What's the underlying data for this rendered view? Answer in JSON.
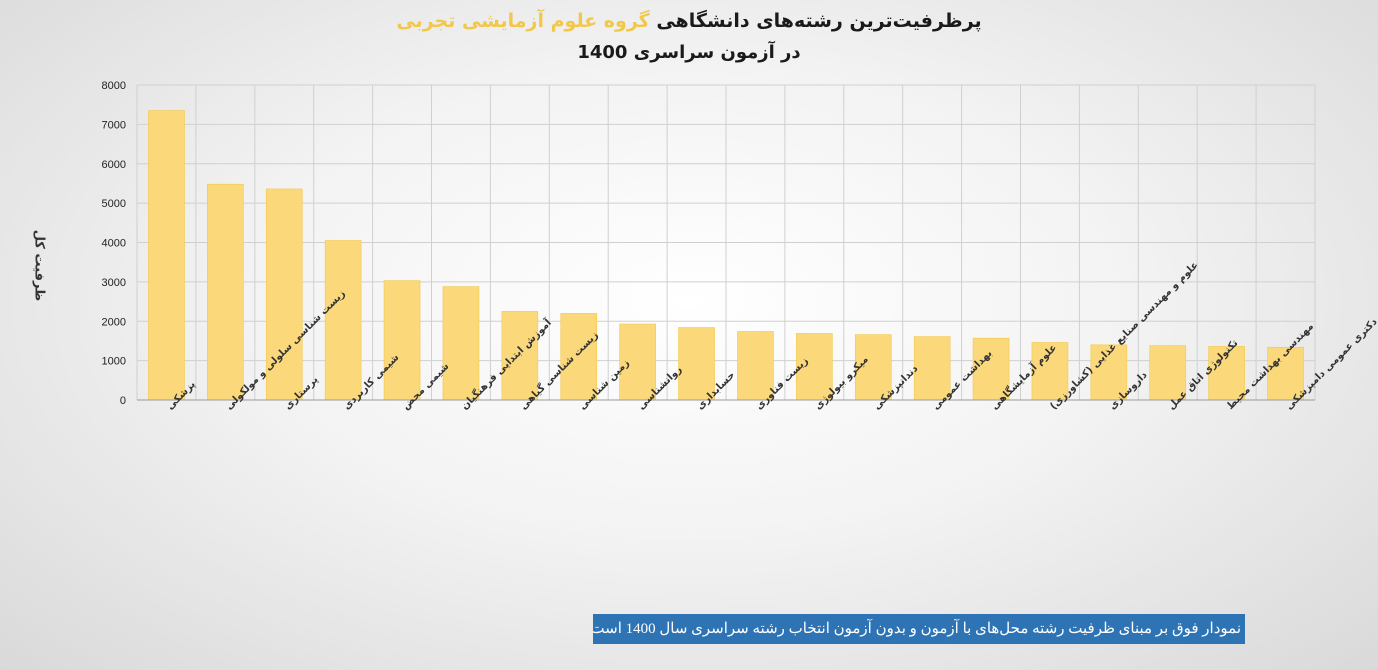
{
  "chart_data": {
    "type": "bar",
    "title_part1": "پرظرفیت‌ترین رشته‌های دانشگاهی ",
    "title_part2": "گروه علوم آزمایشی تجربی",
    "subtitle": "در آزمون سراسری 1400",
    "ylabel": "ظرفیت کل",
    "xlabel": "",
    "ylim": [
      0,
      8000
    ],
    "yticks": [
      0,
      1000,
      2000,
      3000,
      4000,
      5000,
      6000,
      7000,
      8000
    ],
    "grid": true,
    "bar_color": "#fbd97b",
    "bar_stroke": "#f2c84b",
    "categories": [
      "پزشکی",
      "زیست شناسی سلولی و مولکولی",
      "پرستاری",
      "شیمی کاربردی",
      "شیمی محض",
      "آموزش ابتدایی فرهنگیان",
      "زیست شناسی گیاهی",
      "زمین شناسی",
      "روانشناسی",
      "حسابداری",
      "زیست فناوری",
      "میکرو بیولوژی",
      "دندانپزشکی",
      "بهداشت عمومی",
      "علوم آزمایشگاهی",
      "علوم و مهندسی صنایع غذایی (کشاورزی)",
      "داروسازی",
      "تکنولوژی اتاق عمل",
      "مهندسی بهداشت محیط",
      "دکتری عمومی دامپزشکی"
    ],
    "values": [
      7350,
      5480,
      5360,
      4050,
      3030,
      2880,
      2250,
      2200,
      1930,
      1840,
      1740,
      1690,
      1660,
      1610,
      1570,
      1460,
      1400,
      1380,
      1360,
      1340
    ]
  },
  "footnote": "نمودار فوق بر مبنای ظرفیت رشته محل‌های با آزمون و بدون آزمون انتخاب رشته سراسری سال 1400 است"
}
